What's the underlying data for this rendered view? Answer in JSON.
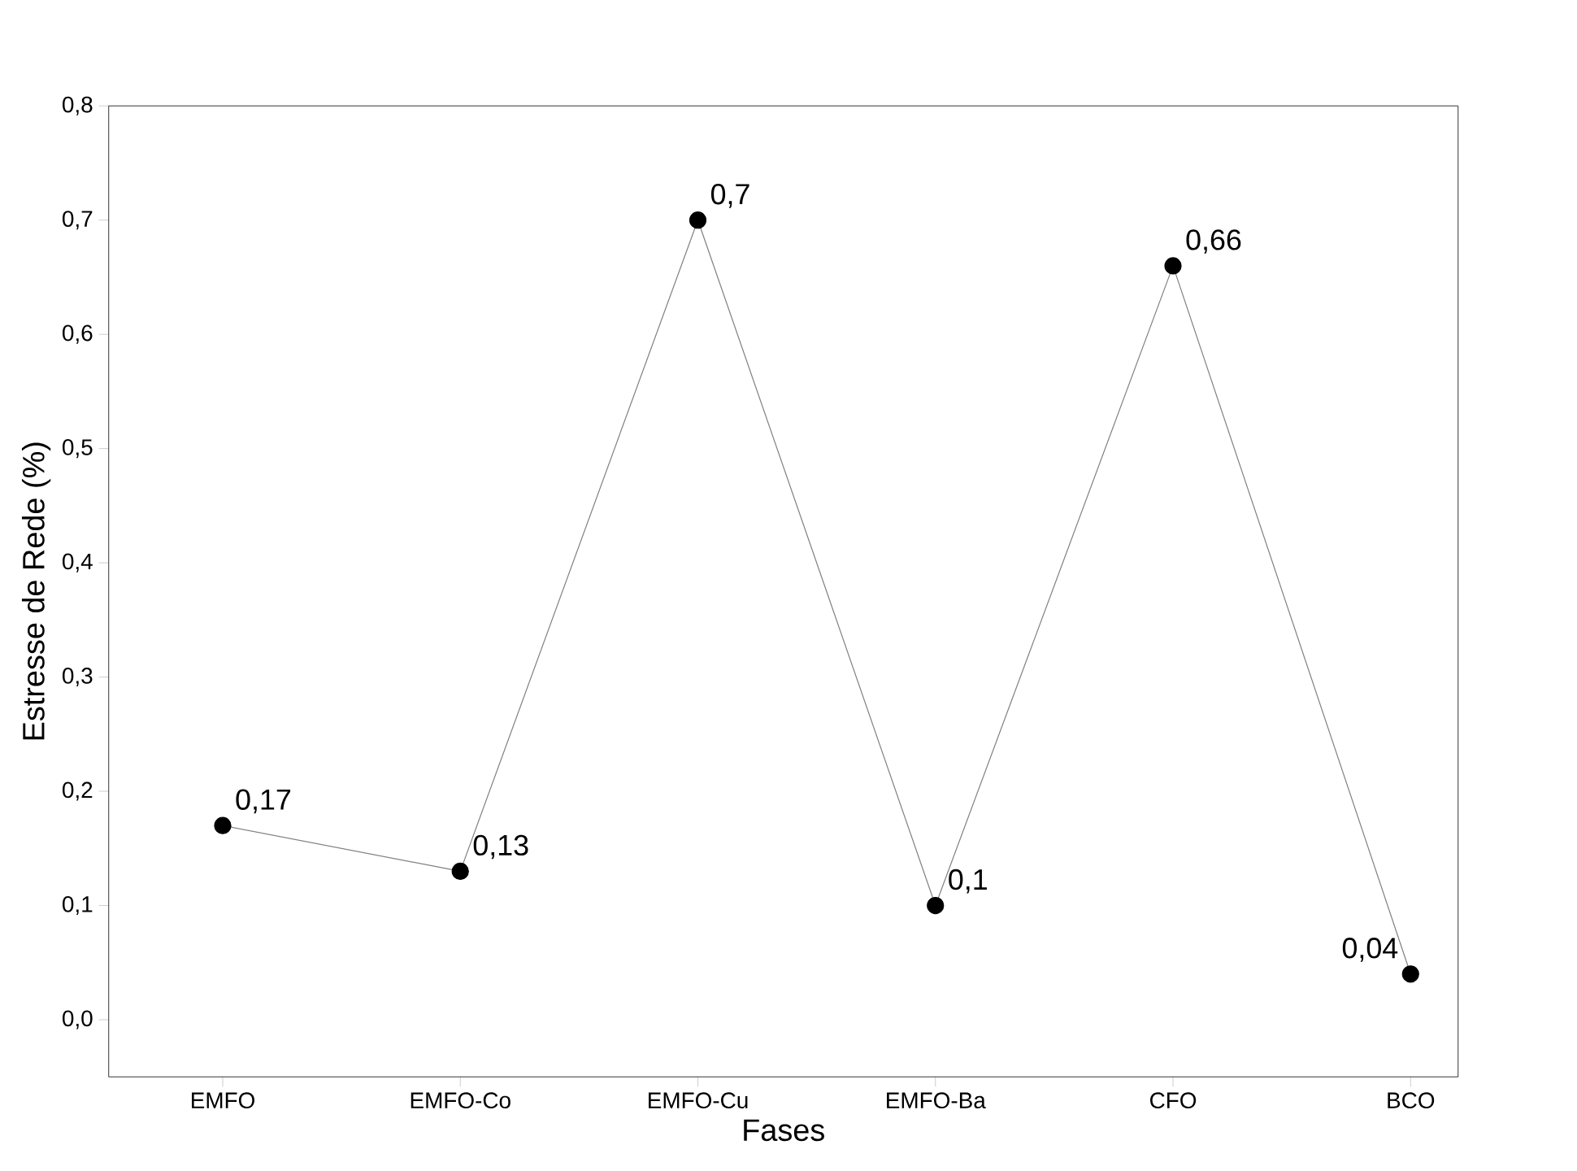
{
  "chart_data": {
    "type": "line",
    "xlabel": "Fases",
    "ylabel": "Estresse de Rede (%)",
    "categories": [
      "EMFO",
      "EMFO-Co",
      "EMFO-Cu",
      "EMFO-Ba",
      "CFO",
      "BCO"
    ],
    "series": [
      {
        "color": "#000000",
        "values": [
          0.17,
          0.13,
          0.7,
          0.1,
          0.66,
          0.04
        ],
        "value_labels": [
          "0,17",
          "0,13",
          "0,7",
          "0,1",
          "0,66",
          "0,04"
        ]
      }
    ],
    "ylim": [
      -0.05,
      0.8
    ],
    "yticks": [
      {
        "value": 0,
        "label": "0,0"
      },
      {
        "value": 0.1,
        "label": "0,1"
      },
      {
        "value": 0.2,
        "label": "0,2"
      },
      {
        "value": 0.3,
        "label": "0,3"
      },
      {
        "value": 0.4,
        "label": "0,4"
      },
      {
        "value": 0.5,
        "label": "0,5"
      },
      {
        "value": 0.6,
        "label": "0,6"
      },
      {
        "value": 0.7,
        "label": "0,7"
      },
      {
        "value": 0.8,
        "label": "0,8"
      }
    ],
    "marker": "circle",
    "line_style": "solid"
  }
}
